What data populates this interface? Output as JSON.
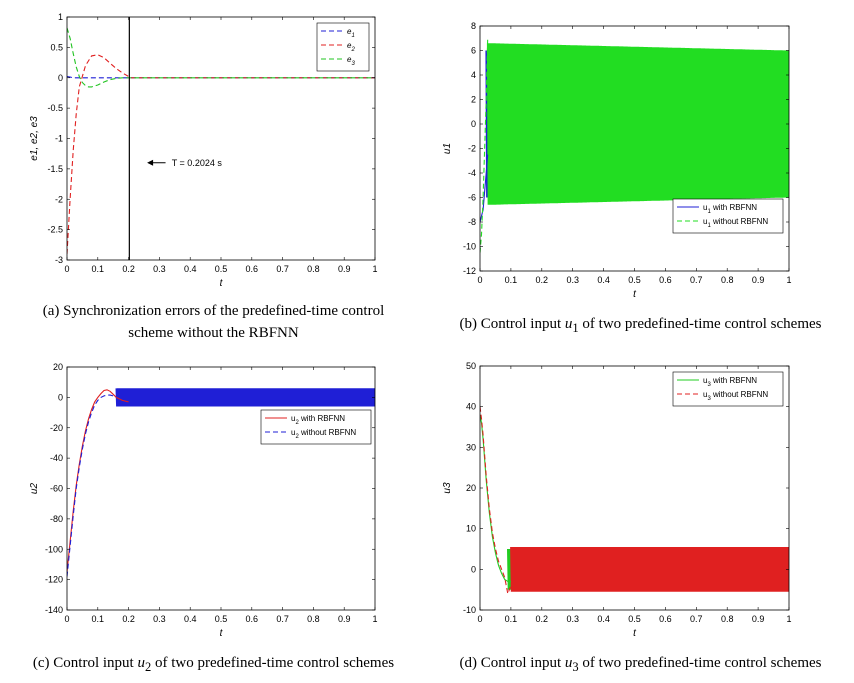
{
  "chart_data": [
    {
      "id": "a",
      "type": "line",
      "title": "",
      "caption_prefix": "(a) Synchronization errors of the predefined-time control",
      "caption_line2": "scheme without the RBFNN",
      "xlabel": "t",
      "ylabel": "e1, e2, e3",
      "xlim": [
        0,
        1
      ],
      "ylim": [
        -3,
        1
      ],
      "xticks": [
        "0",
        "0.1",
        "0.2",
        "0.3",
        "0.4",
        "0.5",
        "0.6",
        "0.7",
        "0.8",
        "0.9",
        "1"
      ],
      "yticks": [
        "1",
        "0.5",
        "0",
        "-0.5",
        "-1",
        "-1.5",
        "-2",
        "-2.5",
        "-3"
      ],
      "legend": [
        "e1",
        "e2",
        "e3"
      ],
      "legend_position": "top-right",
      "annotation": "T = 0.2024 s",
      "vline_x": 0.2024,
      "series": [
        {
          "name": "e1",
          "color": "#1f1fd6",
          "x": [
            0,
            0.01,
            0.02,
            0.03,
            1.0
          ],
          "y": [
            0.02,
            0.01,
            0.0,
            0.0,
            0.0
          ]
        },
        {
          "name": "e2",
          "color": "#e02020",
          "x": [
            0,
            0.01,
            0.02,
            0.03,
            0.04,
            0.06,
            0.08,
            0.1,
            0.12,
            0.14,
            0.16,
            0.18,
            0.2,
            0.21,
            1.0
          ],
          "y": [
            -2.9,
            -2.0,
            -1.2,
            -0.6,
            -0.15,
            0.2,
            0.36,
            0.38,
            0.33,
            0.24,
            0.15,
            0.08,
            0.02,
            0.0,
            0.0
          ]
        },
        {
          "name": "e3",
          "color": "#22c422",
          "x": [
            0,
            0.01,
            0.02,
            0.03,
            0.04,
            0.05,
            0.06,
            0.07,
            0.08,
            0.1,
            0.12,
            0.14,
            0.16,
            0.18,
            0.2,
            1.0
          ],
          "y": [
            0.82,
            0.65,
            0.4,
            0.18,
            0.02,
            -0.08,
            -0.13,
            -0.15,
            -0.15,
            -0.12,
            -0.07,
            -0.03,
            -0.01,
            0.0,
            0.0,
            0.0
          ]
        }
      ]
    },
    {
      "id": "b",
      "type": "line",
      "caption_prefix": "(b) Control input ",
      "caption_var": "u",
      "caption_sub": "1",
      "caption_suffix": " of two predefined-time control schemes",
      "xlabel": "t",
      "ylabel": "u1",
      "xlim": [
        0,
        1
      ],
      "ylim": [
        -12,
        8
      ],
      "xticks": [
        "0",
        "0.1",
        "0.2",
        "0.3",
        "0.4",
        "0.5",
        "0.6",
        "0.7",
        "0.8",
        "0.9",
        "1"
      ],
      "yticks": [
        "8",
        "6",
        "4",
        "2",
        "0",
        "-2",
        "-4",
        "-6",
        "-8",
        "-10",
        "-12"
      ],
      "legend": [
        "u1 with RBFNN",
        "u1 without RBFNN"
      ],
      "legend_position": "bottom-right",
      "series": [
        {
          "name": "u1 with RBFNN",
          "color": "#1f1fd6",
          "x": [
            0,
            0.01,
            0.02,
            0.025
          ],
          "y": [
            -8.0,
            -7.0,
            -4.0,
            -2.5
          ],
          "band_start": 0.02,
          "band_amplitude": 6.0
        },
        {
          "name": "u1 without RBFNN",
          "color": "#22dd22",
          "x": [
            0,
            0.005,
            0.01,
            0.02,
            0.025
          ],
          "y": [
            -10.5,
            -9.0,
            -6.0,
            2.0,
            7.0
          ],
          "band_start": 0.025,
          "band_amplitude_start": 6.6,
          "band_amplitude_end": 6.0
        }
      ]
    },
    {
      "id": "c",
      "type": "line",
      "caption_prefix": "(c) Control input ",
      "caption_var": "u",
      "caption_sub": "2",
      "caption_suffix": " of two predefined-time control schemes",
      "xlabel": "t",
      "ylabel": "u2",
      "xlim": [
        0,
        1
      ],
      "ylim": [
        -140,
        20
      ],
      "xticks": [
        "0",
        "0.1",
        "0.2",
        "0.3",
        "0.4",
        "0.5",
        "0.6",
        "0.7",
        "0.8",
        "0.9",
        "1"
      ],
      "yticks": [
        "20",
        "0",
        "-20",
        "-40",
        "-60",
        "-80",
        "-100",
        "-120",
        "-140"
      ],
      "legend": [
        "u2 with RBFNN",
        "u2 without RBFNN"
      ],
      "legend_position": "right",
      "series": [
        {
          "name": "u2 with RBFNN",
          "color": "#e02020",
          "x": [
            0,
            0.01,
            0.02,
            0.03,
            0.04,
            0.05,
            0.06,
            0.07,
            0.08,
            0.09,
            0.1,
            0.11,
            0.12,
            0.13,
            0.14,
            0.15,
            0.16,
            0.18,
            0.2
          ],
          "y": [
            -115,
            -95,
            -75,
            -58,
            -44,
            -32,
            -22,
            -14,
            -8,
            -3,
            0,
            2.5,
            4.5,
            5,
            4,
            2,
            0,
            -2,
            -3
          ],
          "band_start": 0.2,
          "band_amplitude": 5.0
        },
        {
          "name": "u2 without RBFNN",
          "color": "#1f1fd6",
          "x": [
            0,
            0.01,
            0.02,
            0.03,
            0.04,
            0.05,
            0.06,
            0.07,
            0.08,
            0.09,
            0.1,
            0.11,
            0.12,
            0.13,
            0.14,
            0.15,
            0.16
          ],
          "y": [
            -118,
            -98,
            -78,
            -60,
            -46,
            -34,
            -24,
            -16,
            -10,
            -5,
            -2,
            0,
            1,
            1.5,
            1.5,
            1,
            0
          ],
          "band_start": 0.16,
          "band_amplitude": 6.0
        }
      ]
    },
    {
      "id": "d",
      "type": "line",
      "caption_prefix": "(d) Control input ",
      "caption_var": "u",
      "caption_sub": "3",
      "caption_suffix": " of two predefined-time control schemes",
      "xlabel": "t",
      "ylabel": "u3",
      "xlim": [
        0,
        1
      ],
      "ylim": [
        -10,
        50
      ],
      "xticks": [
        "0",
        "0.1",
        "0.2",
        "0.3",
        "0.4",
        "0.5",
        "0.6",
        "0.7",
        "0.8",
        "0.9",
        "1"
      ],
      "yticks": [
        "50",
        "40",
        "30",
        "20",
        "10",
        "0",
        "-10"
      ],
      "legend": [
        "u3 with RBFNN",
        "u3 without RBFNN"
      ],
      "legend_position": "top-right",
      "series": [
        {
          "name": "u3 with RBFNN",
          "color": "#22cc22",
          "x": [
            0,
            0.005,
            0.01,
            0.02,
            0.03,
            0.04,
            0.05,
            0.06,
            0.07,
            0.08,
            0.09,
            0.1
          ],
          "y": [
            38,
            36,
            32,
            22,
            14,
            8,
            4,
            1,
            -1,
            -2.5,
            -3,
            -3
          ],
          "band_start": 0.09,
          "band_amplitude": 5.0
        },
        {
          "name": "u3 without RBFNN",
          "color": "#e02020",
          "x": [
            0,
            0.005,
            0.01,
            0.02,
            0.03,
            0.04,
            0.05,
            0.06,
            0.07,
            0.08,
            0.09,
            0.1
          ],
          "y": [
            40,
            37,
            33,
            23,
            15,
            9,
            5,
            2,
            0,
            -2,
            -6,
            -4
          ],
          "band_start": 0.1,
          "band_amplitude": 5.5
        }
      ]
    }
  ]
}
